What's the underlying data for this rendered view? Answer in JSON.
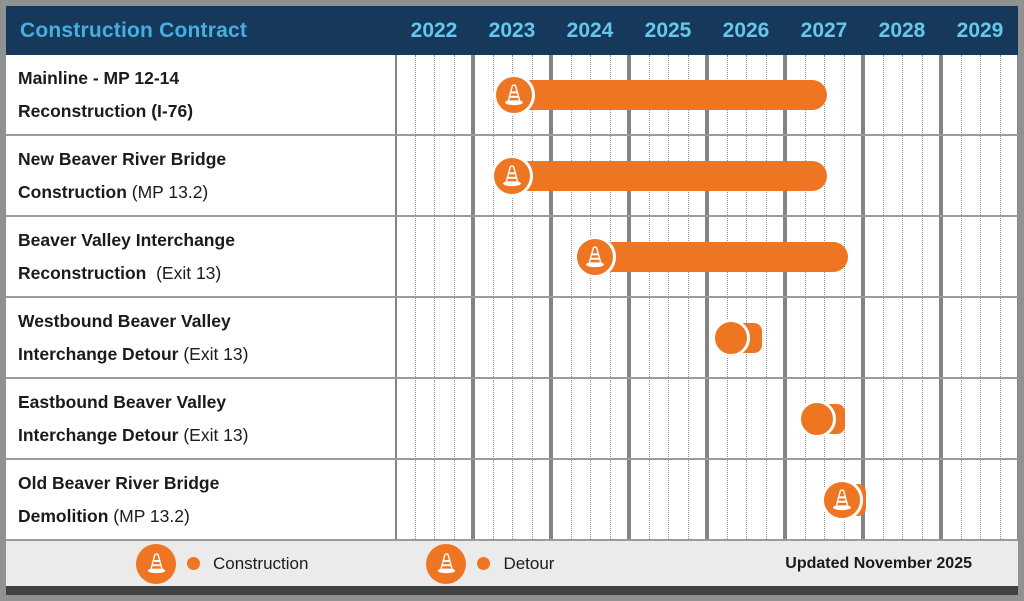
{
  "header": {
    "title": "Construction Contract",
    "years": [
      "2022",
      "2023",
      "2024",
      "2025",
      "2026",
      "2027",
      "2028",
      "2029"
    ]
  },
  "chart_data": {
    "type": "gantt",
    "x_axis": {
      "start": 2022,
      "end": 2030,
      "unit": "year",
      "minor_divisions_per_year": 4
    },
    "rows": [
      {
        "label_lines": [
          {
            "bold": "Mainline - MP 12-14",
            "regular": ""
          },
          {
            "bold": "Reconstruction (I-76)",
            "regular": ""
          }
        ],
        "category": "construction",
        "marker": "cone-bar",
        "start": 2023.52,
        "end": 2027.54
      },
      {
        "label_lines": [
          {
            "bold": "New Beaver River Bridge",
            "regular": ""
          },
          {
            "bold": "Construction",
            "regular": " (MP 13.2)"
          }
        ],
        "category": "construction",
        "marker": "cone-bar",
        "start": 2023.5,
        "end": 2027.54
      },
      {
        "label_lines": [
          {
            "bold": "Beaver Valley Interchange",
            "regular": ""
          },
          {
            "bold": "Reconstruction",
            "regular": "  (Exit 13)"
          }
        ],
        "category": "construction",
        "marker": "cone-bar",
        "start": 2024.56,
        "end": 2027.81
      },
      {
        "label_lines": [
          {
            "bold": "Westbound Beaver Valley",
            "regular": ""
          },
          {
            "bold": "Interchange Detour",
            "regular": " (Exit 13)"
          }
        ],
        "category": "detour",
        "marker": "dot-bar",
        "start": 2026.31,
        "end": 2026.71
      },
      {
        "label_lines": [
          {
            "bold": "Eastbound Beaver Valley",
            "regular": ""
          },
          {
            "bold": "Interchange Detour",
            "regular": " (Exit 13)"
          }
        ],
        "category": "detour",
        "marker": "dot-bar",
        "start": 2027.41,
        "end": 2027.77
      },
      {
        "label_lines": [
          {
            "bold": "Old Beaver River Bridge",
            "regular": ""
          },
          {
            "bold": "Demolition",
            "regular": " (MP 13.2)"
          }
        ],
        "category": "construction",
        "marker": "cone-stub",
        "start": 2027.73,
        "end": 2028.04
      }
    ]
  },
  "legend": {
    "items": [
      {
        "icon": "traffic-cone-badge",
        "label": "Construction"
      },
      {
        "icon": "traffic-cone-badge",
        "label": "Detour"
      }
    ],
    "updated_text": "Updated November 2025"
  },
  "colors": {
    "orange": "#EE7522",
    "header_bg": "#16395B",
    "header_title_text": "#45AFDF",
    "year_text": "#66C6EC",
    "grid_solid": "#828486",
    "grid_dotted": "#909090",
    "row_divider": "#9B9B9B",
    "legend_bg": "#EBEBEB",
    "frame": "#8F9193",
    "bottom_band": "#3F4143",
    "label_text": "#1B1B1B"
  }
}
